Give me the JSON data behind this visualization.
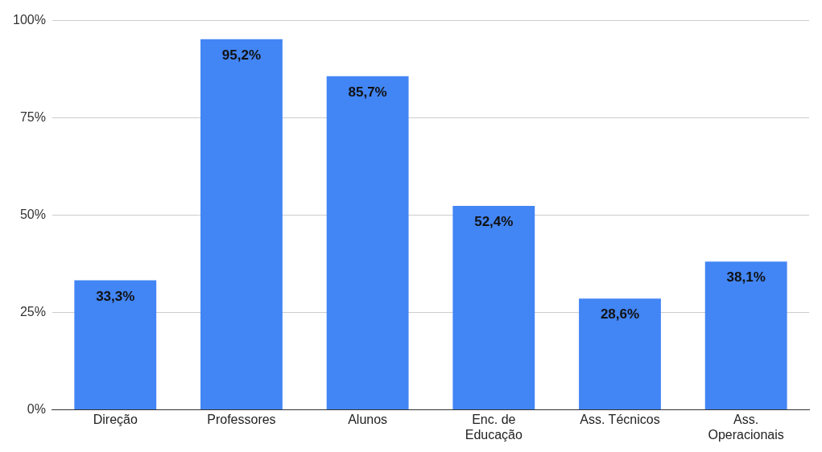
{
  "chart_data": {
    "type": "bar",
    "categories": [
      "Direção",
      "Professores",
      "Alunos",
      "Enc. de Educação",
      "Ass. Técnicos",
      "Ass. Operacionais"
    ],
    "values": [
      33.3,
      95.2,
      85.7,
      52.4,
      28.6,
      38.1
    ],
    "value_labels": [
      "33,3%",
      "95,2%",
      "85,7%",
      "52,4%",
      "28,6%",
      "38,1%"
    ],
    "color": "#4285f4",
    "ylim": [
      0,
      100
    ],
    "yticks": [
      {
        "value": 0,
        "label": "0%"
      },
      {
        "value": 25,
        "label": "25%"
      },
      {
        "value": 50,
        "label": "50%"
      },
      {
        "value": 75,
        "label": "75%"
      },
      {
        "value": 100,
        "label": "100%"
      }
    ],
    "grid": "y",
    "legend": false
  }
}
